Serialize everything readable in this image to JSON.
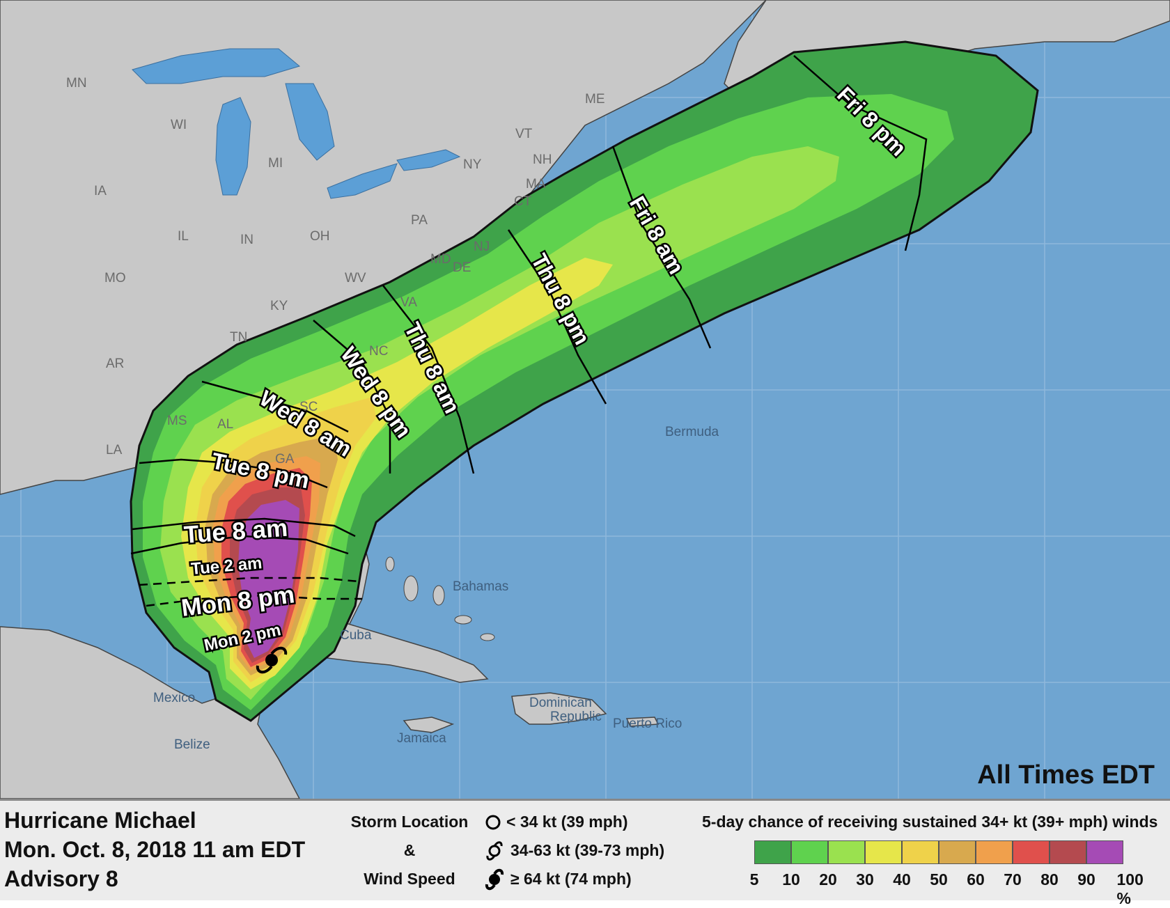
{
  "map": {
    "colors": {
      "ocean": "#6fa5d1",
      "land": "#c8c8c8",
      "lakes": "#5c9fd6",
      "grid": "#8fb8dc",
      "border": "#333333"
    },
    "state_labels": [
      "MN",
      "WI",
      "MI",
      "IA",
      "IL",
      "IN",
      "OH",
      "PA",
      "NY",
      "VT",
      "NH",
      "MA",
      "CT",
      "ME",
      "MO",
      "KY",
      "WV",
      "TN",
      "AR",
      "MS",
      "AL",
      "LA",
      "NC",
      "VA",
      "DE",
      "MD",
      "NJ",
      "SC",
      "GA"
    ],
    "place_labels": {
      "bermuda": "Bermuda",
      "bahamas": "Bahamas",
      "cuba": "Cuba",
      "mexico": "Mexico",
      "belize": "Belize",
      "jamaica": "Jamaica",
      "dominican": "Dominican",
      "republic": "Republic",
      "puerto_rico": "Puerto Rico"
    },
    "time_labels": {
      "mon_2pm": "Mon  2  pm",
      "mon_8pm": "Mon  8  pm",
      "tue_2am": "Tue   2   am",
      "tue_8am": "Tue  8  am",
      "tue_8pm": "Tue  8  pm",
      "wed_8am": "Wed 8 am",
      "wed_8pm": "Wed 8 pm",
      "thu_8am": "Thu 8 am",
      "thu_8pm": "Thu 8 pm",
      "fri_8am": "Fri 8 am",
      "fri_8pm": "Fri  8  pm"
    },
    "corner_note": "All Times EDT",
    "storm_position": "current center over western Caribbean Sea near the Yucatan Channel"
  },
  "legend": {
    "storm_name": "Hurricane Michael",
    "datetime": "Mon. Oct. 8, 2018  11 am EDT",
    "advisory": "Advisory 8",
    "storm_location_label": "Storm Location",
    "ampersand": "&",
    "wind_speed_label": "Wind Speed",
    "symbols": [
      {
        "icon": "open-circle-icon",
        "label": "< 34 kt (39 mph)"
      },
      {
        "icon": "tropical-storm-icon",
        "label": "34-63 kt (39-73 mph)"
      },
      {
        "icon": "hurricane-icon",
        "label": "≥ 64 kt (74 mph)"
      }
    ],
    "scale_title": "5-day chance of receiving sustained 34+ kt (39+ mph) winds",
    "scale_ticks": [
      "5",
      "10",
      "20",
      "30",
      "40",
      "50",
      "60",
      "70",
      "80",
      "90",
      "100 %"
    ],
    "scale_colors": [
      "#3fa34a",
      "#5fd24e",
      "#9ae14f",
      "#e6e64a",
      "#efd24a",
      "#d8a94e",
      "#f0a04c",
      "#e0504c",
      "#b44a4f",
      "#a54bb5"
    ]
  }
}
